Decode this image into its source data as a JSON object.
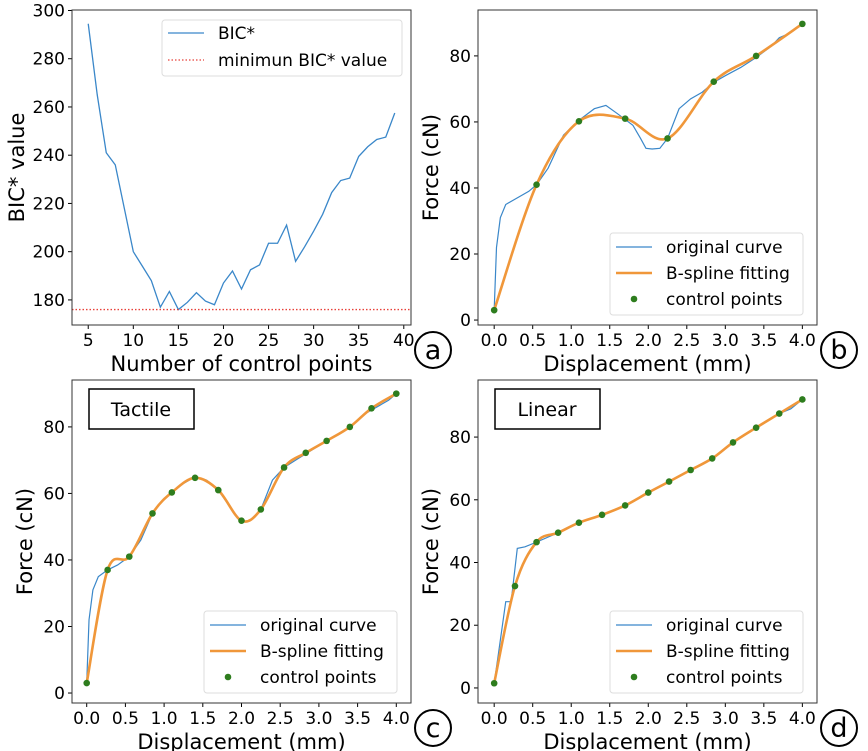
{
  "chart_data": [
    {
      "id": "a",
      "type": "line",
      "panel_label": "a",
      "xlabel": "Number of control points",
      "ylabel": "BIC* value",
      "xlim": [
        3.2,
        40.8
      ],
      "ylim": [
        169.6,
        300.2
      ],
      "xticks": [
        5,
        10,
        15,
        20,
        25,
        30,
        35,
        40
      ],
      "yticks": [
        180,
        200,
        220,
        240,
        260,
        280,
        300
      ],
      "legend_position": "top-right",
      "series": [
        {
          "name": "BIC*",
          "color": "#3a87c9",
          "x": [
            5,
            6,
            7,
            8,
            9,
            10,
            11,
            12,
            13,
            14,
            15,
            16,
            17,
            18,
            19,
            20,
            21,
            22,
            23,
            24,
            25,
            26,
            27,
            28,
            29,
            30,
            31,
            32,
            33,
            34,
            35,
            36,
            37,
            38,
            39
          ],
          "y": [
            294.5,
            265,
            241,
            236,
            218,
            200,
            194,
            188,
            177,
            183.5,
            176,
            179,
            183,
            179.5,
            178,
            187,
            192,
            184.5,
            192.5,
            194.5,
            203.5,
            203.5,
            211,
            196,
            202,
            208.5,
            215.5,
            224.5,
            229.5,
            230.5,
            239.5,
            243.5,
            246.5,
            247.5,
            257.5
          ]
        },
        {
          "name": "minimun BIC* value",
          "color": "#e8413a",
          "style": "dotted",
          "y": 176
        }
      ]
    },
    {
      "id": "b",
      "type": "line",
      "panel_label": "b",
      "xlabel": "Displacement (mm)",
      "ylabel": "Force (cN)",
      "xlim": [
        -0.21,
        4.19
      ],
      "ylim": [
        -1.5,
        93.9
      ],
      "xticks": [
        "0.0",
        "0.5",
        "1.0",
        "1.5",
        "2.0",
        "2.5",
        "3.0",
        "3.5",
        "4.0"
      ],
      "yticks": [
        0,
        20,
        40,
        60,
        80
      ],
      "legend_position": "bottom-right",
      "original": {
        "name": "original curve",
        "x": [
          0,
          0.03,
          0.08,
          0.15,
          0.3,
          0.45,
          0.55,
          0.7,
          0.9,
          1.1,
          1.3,
          1.45,
          1.6,
          1.8,
          1.9,
          1.97,
          2.05,
          2.15,
          2.25,
          2.4,
          2.55,
          2.7,
          2.85,
          3.0,
          3.2,
          3.4,
          3.6,
          3.7,
          3.8,
          4.0
        ],
        "y": [
          3,
          22,
          31,
          35,
          37,
          39,
          41,
          46,
          56,
          60.5,
          64,
          65,
          62.5,
          59,
          55,
          52,
          51.8,
          52,
          55,
          64,
          67,
          69,
          72,
          74,
          76.5,
          79.5,
          83,
          85.5,
          86.5,
          89.7
        ]
      },
      "fit": {
        "name": "B-spline fitting"
      },
      "control_points": {
        "name": "control points",
        "x": [
          0,
          0.55,
          1.1,
          1.7,
          2.25,
          2.85,
          3.4,
          4.0
        ],
        "y": [
          3,
          41,
          60.2,
          61,
          55,
          72.2,
          80,
          89.7
        ]
      }
    },
    {
      "id": "c",
      "type": "line",
      "panel_label": "c",
      "title_box": "Tactile",
      "xlabel": "Displacement (mm)",
      "ylabel": "Force (cN)",
      "xlim": [
        -0.19,
        4.19
      ],
      "ylim": [
        -3,
        94.1
      ],
      "xticks": [
        "0.0",
        "0.5",
        "1.0",
        "1.5",
        "2.0",
        "2.5",
        "3.0",
        "3.5",
        "4.0"
      ],
      "yticks": [
        0,
        20,
        40,
        60,
        80
      ],
      "legend_position": "bottom-right",
      "original": {
        "name": "original curve",
        "x": [
          0,
          0.03,
          0.08,
          0.15,
          0.27,
          0.4,
          0.55,
          0.7,
          0.85,
          1.0,
          1.1,
          1.25,
          1.4,
          1.55,
          1.7,
          1.85,
          1.95,
          2.05,
          2.15,
          2.25,
          2.4,
          2.55,
          2.7,
          2.85,
          3.1,
          3.4,
          3.6,
          3.75,
          3.9,
          4.0
        ],
        "y": [
          3,
          22,
          31,
          35,
          37,
          38.5,
          41,
          46,
          54,
          58.5,
          60.5,
          63,
          65,
          64,
          61,
          56,
          52.5,
          51.5,
          52.5,
          55.2,
          64,
          67.8,
          70,
          72.2,
          75.8,
          80,
          84,
          86,
          88,
          90
        ]
      },
      "fit": {
        "name": "B-spline fitting"
      },
      "control_points": {
        "name": "control points",
        "x": [
          0,
          0.27,
          0.55,
          0.85,
          1.1,
          1.4,
          1.7,
          2.0,
          2.25,
          2.55,
          2.83,
          3.1,
          3.4,
          3.68,
          4.0
        ],
        "y": [
          3,
          37,
          41,
          54,
          60.3,
          64.7,
          61,
          51.8,
          55.2,
          67.8,
          72.2,
          75.8,
          80,
          85.6,
          90
        ]
      }
    },
    {
      "id": "d",
      "type": "line",
      "panel_label": "d",
      "title_box": "Linear",
      "xlabel": "Displacement (mm)",
      "ylabel": "Force (cN)",
      "xlim": [
        -0.21,
        4.19
      ],
      "ylim": [
        -4.8,
        98.2
      ],
      "xticks": [
        "0.0",
        "0.5",
        "1.0",
        "1.5",
        "2.0",
        "2.5",
        "3.0",
        "3.5",
        "4.0"
      ],
      "yticks": [
        0,
        20,
        40,
        60,
        80
      ],
      "legend_position": "bottom-right",
      "original": {
        "name": "original curve",
        "x": [
          0,
          0.05,
          0.15,
          0.22,
          0.3,
          0.4,
          0.55,
          0.83,
          1.1,
          1.4,
          1.7,
          2.0,
          2.27,
          2.55,
          2.83,
          3.0,
          3.1,
          3.4,
          3.7,
          3.85,
          4.0
        ],
        "y": [
          1.5,
          10,
          27.5,
          27.5,
          44.5,
          45,
          46.5,
          49.5,
          52.7,
          55.2,
          58.2,
          62.3,
          65.8,
          69.5,
          73.2,
          76.5,
          78.3,
          83,
          87.5,
          89,
          92
        ]
      },
      "fit": {
        "name": "B-spline fitting"
      },
      "control_points": {
        "name": "control points",
        "x": [
          0,
          0.27,
          0.55,
          0.83,
          1.1,
          1.4,
          1.7,
          2.0,
          2.27,
          2.55,
          2.83,
          3.1,
          3.4,
          3.7,
          4.0
        ],
        "y": [
          1.5,
          32.5,
          46.5,
          49.5,
          52.7,
          55.2,
          58.2,
          62.3,
          65.8,
          69.5,
          73.2,
          78.3,
          83,
          87.5,
          92
        ]
      }
    }
  ],
  "colors": {
    "original": "#3a87c9",
    "fit": "#f0973a",
    "points": "#2e7d1e",
    "min": "#e8413a"
  }
}
